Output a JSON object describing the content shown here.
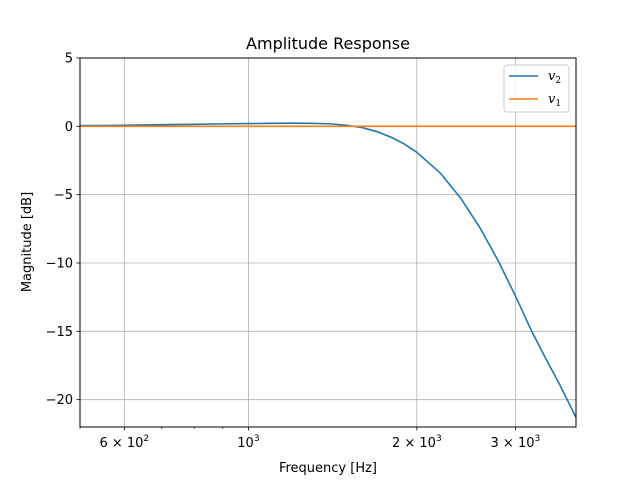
{
  "chart_data": {
    "type": "line",
    "title": "Amplitude Response",
    "xlabel": "Frequency [Hz]",
    "ylabel": "Magnitude [dB]",
    "xscale": "log",
    "xlim": [
      500,
      3850
    ],
    "ylim": [
      -22,
      5
    ],
    "grid": true,
    "legend_position": "top-right",
    "y_ticks": [
      5,
      0,
      -5,
      -10,
      -15,
      -20
    ],
    "y_tick_labels": [
      "5",
      "0",
      "−5",
      "−10",
      "−15",
      "−20"
    ],
    "x_ticks": [
      {
        "value": 600,
        "mantissa": "6",
        "exponent": "2"
      },
      {
        "value": 1000,
        "mantissa": "",
        "exponent": "3"
      },
      {
        "value": 2000,
        "mantissa": "2",
        "exponent": "3"
      },
      {
        "value": 3000,
        "mantissa": "3",
        "exponent": "3"
      }
    ],
    "series": [
      {
        "name": "v2",
        "label_base": "v",
        "label_sub": "2",
        "color": "#1f77b4",
        "x": [
          500,
          600,
          700,
          800,
          900,
          1000,
          1100,
          1200,
          1300,
          1400,
          1500,
          1600,
          1700,
          1800,
          1900,
          2000,
          2200,
          2400,
          2600,
          2800,
          3000,
          3200,
          3400,
          3600,
          3850
        ],
        "y": [
          0.05,
          0.08,
          0.12,
          0.15,
          0.18,
          0.2,
          0.22,
          0.23,
          0.22,
          0.18,
          0.08,
          -0.1,
          -0.4,
          -0.8,
          -1.3,
          -1.9,
          -3.4,
          -5.3,
          -7.5,
          -9.9,
          -12.4,
          -14.9,
          -17.0,
          -18.9,
          -21.3
        ]
      },
      {
        "name": "v1",
        "label_base": "v",
        "label_sub": "1",
        "color": "#ff7f0e",
        "x": [
          500,
          3850
        ],
        "y": [
          0,
          0
        ]
      }
    ]
  }
}
